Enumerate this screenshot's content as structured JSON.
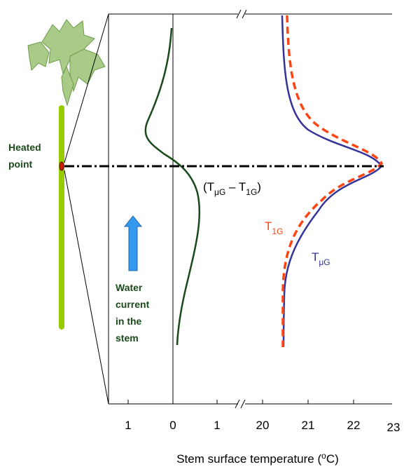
{
  "heated_point": [
    "Heated",
    "point"
  ],
  "water_current": [
    "Water",
    "current",
    "in the",
    "stem"
  ],
  "difference_label": {
    "open": "(T",
    "sub1": "μG",
    "mid": " – T",
    "sub2": "1G",
    "close": ")"
  },
  "curve_labels": {
    "t1g": {
      "main": "T",
      "sub": "1G"
    },
    "tug": {
      "main": "T",
      "sub": "μG"
    }
  },
  "axis": {
    "ticks": [
      "1",
      "0",
      "1",
      "20",
      "21",
      "22",
      "23"
    ],
    "title": {
      "text": "Stem surface temperature (",
      "sup": "o",
      "end": "C)"
    }
  }
}
